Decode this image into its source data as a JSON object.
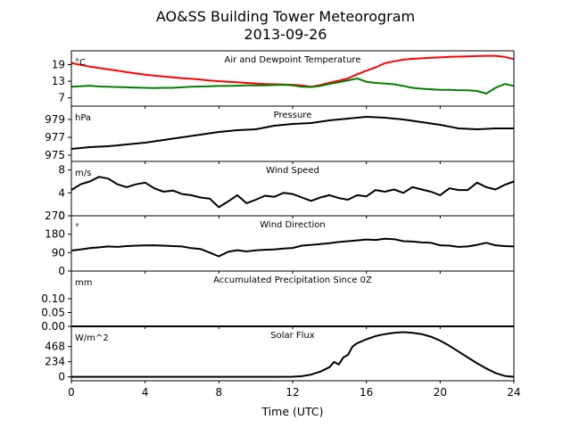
{
  "figure": {
    "title": "AO&SS Building Tower Meteorogram",
    "subtitle": "2013-09-26",
    "xlabel": "Time (UTC)",
    "xticks": [
      0,
      4,
      8,
      12,
      16,
      20,
      24
    ]
  },
  "chart_data": [
    {
      "type": "line",
      "title": "Air and Dewpoint Temperature",
      "unit": "°C",
      "ylim": [
        4,
        24
      ],
      "yticks": [
        7,
        13,
        19
      ],
      "xlim": [
        0,
        24
      ],
      "series": [
        {
          "color": "#ff0000",
          "x": [
            0,
            0.5,
            1,
            1.5,
            2,
            2.5,
            3,
            3.5,
            4,
            4.5,
            5,
            5.5,
            6,
            6.5,
            7,
            7.5,
            8,
            8.5,
            9,
            9.5,
            10,
            10.5,
            11,
            11.5,
            12,
            12.5,
            13,
            13.5,
            14,
            14.5,
            15,
            15.5,
            16,
            16.5,
            17,
            17.5,
            18,
            18.5,
            19,
            19.5,
            20,
            20.5,
            21,
            21.5,
            22,
            22.5,
            23,
            23.5,
            24
          ],
          "values": [
            19.6,
            18.9,
            18.3,
            17.8,
            17.3,
            16.8,
            16.3,
            15.8,
            15.4,
            15.0,
            14.7,
            14.4,
            14.1,
            13.9,
            13.6,
            13.3,
            13.0,
            12.8,
            12.6,
            12.4,
            12.2,
            12.0,
            11.9,
            11.8,
            11.7,
            11.5,
            11.0,
            11.6,
            12.5,
            13.2,
            14.0,
            15.5,
            16.8,
            18.0,
            19.5,
            20.2,
            20.8,
            21.1,
            21.3,
            21.5,
            21.6,
            21.8,
            21.9,
            22.0,
            22.1,
            22.2,
            22.2,
            21.8,
            21.0
          ]
        },
        {
          "color": "#008000",
          "x": [
            0,
            0.5,
            1,
            1.5,
            2,
            2.5,
            3,
            3.5,
            4,
            4.5,
            5,
            5.5,
            6,
            6.5,
            7,
            7.5,
            8,
            8.5,
            9,
            9.5,
            10,
            10.5,
            11,
            11.5,
            12,
            12.5,
            13,
            13.5,
            14,
            14.5,
            15,
            15.5,
            16,
            16.5,
            17,
            17.5,
            18,
            18.5,
            19,
            19.5,
            20,
            20.5,
            21,
            21.5,
            22,
            22.5,
            23,
            23.5,
            24
          ],
          "values": [
            11.0,
            11.2,
            11.4,
            11.1,
            11.0,
            10.9,
            10.8,
            10.7,
            10.6,
            10.5,
            10.6,
            10.6,
            10.8,
            11.0,
            11.1,
            11.2,
            11.3,
            11.3,
            11.4,
            11.5,
            11.5,
            11.5,
            11.6,
            11.7,
            11.5,
            11.0,
            10.9,
            11.3,
            12.0,
            12.6,
            13.3,
            14.0,
            12.8,
            12.4,
            12.2,
            11.9,
            11.3,
            10.6,
            10.3,
            10.1,
            9.9,
            9.9,
            9.7,
            9.7,
            9.5,
            8.5,
            10.6,
            12.0,
            11.3
          ]
        }
      ]
    },
    {
      "type": "line",
      "title": "Pressure",
      "unit": "hPa",
      "ylim": [
        974.3,
        980.5
      ],
      "yticks": [
        975,
        977,
        979
      ],
      "xlim": [
        0,
        24
      ],
      "series": [
        {
          "color": "#000000",
          "x": [
            0,
            1,
            2,
            3,
            4,
            5,
            6,
            7,
            8,
            9,
            10,
            11,
            12,
            13,
            14,
            15,
            16,
            17,
            18,
            19,
            20,
            21,
            22,
            23,
            24
          ],
          "values": [
            975.7,
            975.9,
            976.0,
            976.2,
            976.4,
            976.7,
            977.0,
            977.3,
            977.6,
            977.8,
            977.9,
            978.3,
            978.5,
            978.6,
            978.9,
            979.1,
            979.3,
            979.2,
            979.0,
            978.7,
            978.4,
            978.0,
            977.9,
            978.0,
            978.0
          ]
        }
      ]
    },
    {
      "type": "line",
      "title": "Wind Speed",
      "unit": "m/s",
      "ylim": [
        0,
        9.5
      ],
      "yticks": [
        0,
        4,
        8
      ],
      "xlim": [
        0,
        24
      ],
      "series": [
        {
          "color": "#000000",
          "x": [
            0,
            0.5,
            1,
            1.5,
            2,
            2.5,
            3,
            3.5,
            4,
            4.5,
            5,
            5.5,
            6,
            6.5,
            7,
            7.5,
            8,
            8.5,
            9,
            9.5,
            10,
            10.5,
            11,
            11.5,
            12,
            12.5,
            13,
            13.5,
            14,
            14.5,
            15,
            15.5,
            16,
            16.5,
            17,
            17.5,
            18,
            18.5,
            19,
            19.5,
            20,
            20.5,
            21,
            21.5,
            22,
            22.5,
            23,
            23.5,
            24
          ],
          "values": [
            4.5,
            5.5,
            6.0,
            6.8,
            6.5,
            5.5,
            5.0,
            5.5,
            5.8,
            4.8,
            4.2,
            4.4,
            3.8,
            3.6,
            3.2,
            3.0,
            1.5,
            2.5,
            3.6,
            2.2,
            2.8,
            3.5,
            3.3,
            4.0,
            3.8,
            3.2,
            2.6,
            3.2,
            3.6,
            3.1,
            2.8,
            3.6,
            3.4,
            4.5,
            4.2,
            4.6,
            4.0,
            5.0,
            4.6,
            4.2,
            3.6,
            4.8,
            4.5,
            4.5,
            5.8,
            5.0,
            4.6,
            5.4,
            6.0
          ]
        }
      ]
    },
    {
      "type": "line",
      "title": "Wind Direction",
      "unit": "°",
      "ylim": [
        0,
        270
      ],
      "yticks": [
        0,
        90,
        180,
        270
      ],
      "xlim": [
        0,
        24
      ],
      "series": [
        {
          "color": "#000000",
          "x": [
            0,
            0.5,
            1,
            1.5,
            2,
            2.5,
            3,
            3.5,
            4,
            4.5,
            5,
            5.5,
            6,
            6.5,
            7,
            7.5,
            8,
            8.5,
            9,
            9.5,
            10,
            10.5,
            11,
            11.5,
            12,
            12.5,
            13,
            13.5,
            14,
            14.5,
            15,
            15.5,
            16,
            16.5,
            17,
            17.5,
            18,
            18.5,
            19,
            19.5,
            20,
            20.5,
            21,
            21.5,
            22,
            22.5,
            23,
            23.5,
            24
          ],
          "values": [
            100,
            106,
            112,
            116,
            120,
            118,
            122,
            124,
            125,
            126,
            124,
            122,
            120,
            112,
            108,
            90,
            72,
            94,
            102,
            96,
            101,
            104,
            106,
            110,
            113,
            124,
            128,
            132,
            136,
            142,
            146,
            150,
            154,
            152,
            158,
            156,
            146,
            144,
            140,
            138,
            126,
            124,
            118,
            120,
            128,
            138,
            126,
            122,
            120
          ]
        }
      ]
    },
    {
      "type": "line",
      "title": "Accumulated Precipitation Since 0Z",
      "unit": "mm",
      "ylim": [
        0,
        0.2
      ],
      "yticks": [
        0.0,
        0.05,
        0.1
      ],
      "ytick_labels": [
        "0.00",
        "0.05",
        "0.10"
      ],
      "xlim": [
        0,
        24
      ],
      "series": [
        {
          "color": "#000000",
          "x": [
            0,
            24
          ],
          "values": [
            0,
            0
          ]
        }
      ]
    },
    {
      "type": "line",
      "title": "Solar Flux",
      "unit": "W/m^2",
      "ylim": [
        -60,
        780
      ],
      "yticks": [
        0,
        234,
        468
      ],
      "xlim": [
        0,
        24
      ],
      "series": [
        {
          "color": "#000000",
          "x": [
            0,
            2,
            4,
            6,
            8,
            10,
            11,
            12,
            12.5,
            13,
            13.5,
            14,
            14.25,
            14.5,
            14.75,
            15,
            15.25,
            15.5,
            16,
            16.5,
            17,
            17.5,
            18,
            18.5,
            19,
            19.5,
            20,
            20.5,
            21,
            21.5,
            22,
            22.5,
            23,
            23.5,
            24
          ],
          "values": [
            0,
            0,
            0,
            0,
            0,
            0,
            0,
            2,
            10,
            35,
            80,
            150,
            230,
            190,
            300,
            340,
            470,
            520,
            580,
            630,
            660,
            680,
            690,
            680,
            660,
            620,
            560,
            480,
            390,
            300,
            210,
            130,
            60,
            15,
            0
          ]
        }
      ]
    }
  ]
}
